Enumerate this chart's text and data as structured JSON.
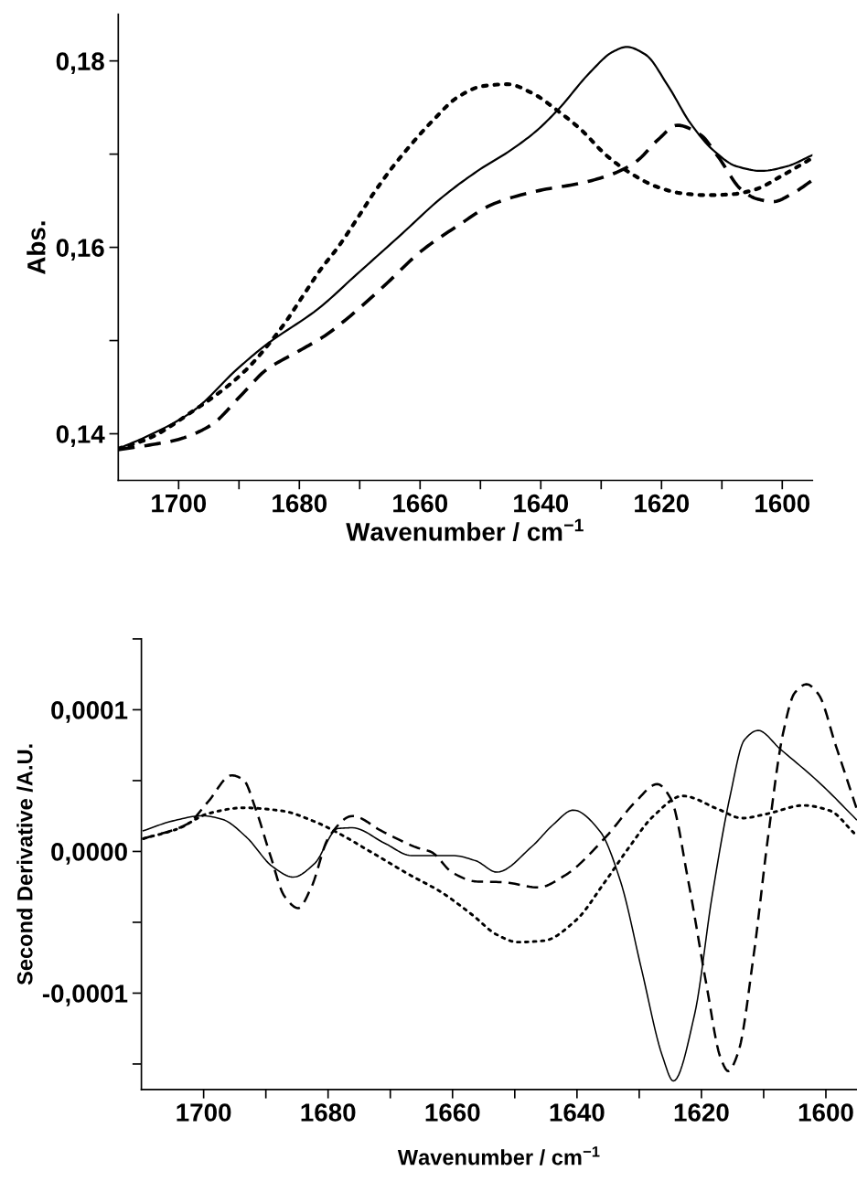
{
  "chart_data": [
    {
      "type": "line",
      "xlabel": "Wavenumber / cm$^{−1}$",
      "ylabel": "Abs.",
      "xlim": [
        1710,
        1595
      ],
      "ylim": [
        0.135,
        0.185
      ],
      "xticks": [
        1700,
        {
          "value": 1690,
          "label": null
        },
        1680,
        {
          "value": 1670,
          "label": null
        },
        1660,
        {
          "value": 1650,
          "label": null
        },
        1640,
        {
          "value": 1630,
          "label": null
        },
        1620,
        {
          "value": 1610,
          "label": null
        },
        1600
      ],
      "yticks": [
        {
          "value": 0.14,
          "label": "0,14"
        },
        {
          "value": 0.15,
          "label": null
        },
        {
          "value": 0.16,
          "label": "0,16"
        },
        {
          "value": 0.17,
          "label": null
        },
        {
          "value": 0.18,
          "label": "0,18"
        }
      ],
      "series": [
        {
          "color": "#000000",
          "line_style": "solid",
          "x": [
            1710,
            1705.3,
            1697.7,
            1690.2,
            1685.6,
            1676.9,
            1670.5,
            1663.6,
            1656.1,
            1650,
            1645.5,
            1640.9,
            1637.1,
            1631.8,
            1628,
            1625.8,
            1622.7,
            1618.9,
            1615.2,
            1611.4,
            1607.6,
            1603.4,
            1599.2,
            1595
          ],
          "values": [
            0.1384,
            0.1397,
            0.1424,
            0.147,
            0.1495,
            0.1534,
            0.1571,
            0.1611,
            0.1655,
            0.1684,
            0.1702,
            0.1724,
            0.1748,
            0.1788,
            0.181,
            0.1815,
            0.1807,
            0.1773,
            0.1733,
            0.1704,
            0.1687,
            0.1682,
            0.1687,
            0.1699
          ]
        },
        {
          "color": "#000000",
          "line_style": "dotted",
          "x": [
            1710,
            1705.3,
            1697.7,
            1689.4,
            1682.6,
            1679.5,
            1676.5,
            1673.5,
            1670.5,
            1667.8,
            1664.8,
            1661.4,
            1657.6,
            1653.8,
            1649.6,
            1645.5,
            1641.3,
            1637.5,
            1633.3,
            1629.2,
            1625,
            1620.8,
            1616.7,
            1612.5,
            1608.3,
            1604.5,
            1600,
            1595.5
          ],
          "values": [
            0.1384,
            0.1394,
            0.1424,
            0.1465,
            0.1517,
            0.1547,
            0.1576,
            0.1601,
            0.163,
            0.1657,
            0.1684,
            0.1711,
            0.1738,
            0.1761,
            0.1773,
            0.1775,
            0.1765,
            0.1748,
            0.1726,
            0.1699,
            0.1679,
            0.1665,
            0.1658,
            0.1656,
            0.1657,
            0.1662,
            0.1677,
            0.1694
          ]
        },
        {
          "color": "#000000",
          "line_style": "dashed",
          "x": [
            1710,
            1703.8,
            1700,
            1694.7,
            1689.4,
            1685.6,
            1680.3,
            1675.8,
            1672,
            1665.9,
            1659.8,
            1653.8,
            1647.7,
            1640.2,
            1633.3,
            1628,
            1624.2,
            1620.5,
            1617.4,
            1613.6,
            1610.6,
            1606.8,
            1604.2,
            1601.5,
            1598.5,
            1595
          ],
          "values": [
            0.1383,
            0.1389,
            0.1394,
            0.1409,
            0.1443,
            0.1468,
            0.1488,
            0.1505,
            0.1524,
            0.1559,
            0.1596,
            0.1623,
            0.1647,
            0.1661,
            0.1669,
            0.1679,
            0.1692,
            0.1716,
            0.1731,
            0.1721,
            0.1697,
            0.1662,
            0.1652,
            0.1649,
            0.1657,
            0.1672
          ]
        }
      ]
    },
    {
      "type": "line",
      "xlabel": "Wavenumber / cm$^{−1}$",
      "ylabel": "Second Derivative /A.U.",
      "xlim": [
        1710,
        1595
      ],
      "ylim": [
        -0.000168,
        0.00015
      ],
      "xticks": [
        1700,
        {
          "value": 1690,
          "label": null
        },
        1680,
        {
          "value": 1670,
          "label": null
        },
        1660,
        {
          "value": 1650,
          "label": null
        },
        1640,
        {
          "value": 1630,
          "label": null
        },
        1620,
        {
          "value": 1610,
          "label": null
        },
        1600
      ],
      "yticks": [
        {
          "value": -0.00015,
          "label": null
        },
        {
          "value": -0.0001,
          "label": "-0,0001"
        },
        {
          "value": -5e-05,
          "label": null
        },
        {
          "value": 0,
          "label": "0,0000"
        },
        {
          "value": 5e-05,
          "label": null
        },
        {
          "value": 0.0001,
          "label": "0,0001"
        },
        {
          "value": 0.00015,
          "label": null
        }
      ],
      "series": [
        {
          "color": "#000000",
          "line_style": "solid",
          "x": [
            1709.7,
            1705,
            1700.2,
            1696.9,
            1693.1,
            1688.9,
            1685.6,
            1682.2,
            1678.4,
            1676.1,
            1670.9,
            1666.6,
            1660,
            1656.2,
            1652.9,
            1647.2,
            1643.8,
            1640.6,
            1636.3,
            1633,
            1629.6,
            1626.3,
            1624.5,
            1621.1,
            1618.3,
            1615.4,
            1613.1,
            1610.9,
            1607.4,
            1600.8,
            1595.1
          ],
          "values": [
            1.46e-05,
            2.15e-05,
            2.52e-05,
            2.25e-05,
            1e-05,
            -1.08e-05,
            -1.81e-05,
            -8.7e-06,
            1.62e-05,
            1.67e-05,
            5.8e-06,
            -2.9e-06,
            -2.9e-06,
            -6.7e-06,
            -1.46e-05,
            3.7e-06,
            1.9e-05,
            2.92e-05,
            1.42e-05,
            -2.12e-05,
            -8.37e-05,
            -0.000144,
            -0.000162,
            -0.000115,
            -3.2e-05,
            3.9e-05,
            7.87e-05,
            8.54e-05,
            7.25e-05,
            4.75e-05,
            2.25e-05
          ]
        },
        {
          "color": "#000000",
          "line_style": "dashed",
          "x": [
            1709.7,
            1702.6,
            1699.3,
            1695.5,
            1693.6,
            1691.7,
            1689.3,
            1687,
            1684.8,
            1682.7,
            1679.9,
            1676.1,
            1671.3,
            1665.7,
            1663.4,
            1660,
            1656.2,
            1651.9,
            1646.2,
            1642,
            1635.4,
            1630.6,
            1627.1,
            1624.9,
            1622.1,
            1619.2,
            1616.9,
            1615.7,
            1614.1,
            1611.6,
            1609.3,
            1606.9,
            1605,
            1603.1,
            1601.2,
            1598.4,
            1595.1
          ],
          "values": [
            9e-06,
            1.94e-05,
            3.5e-05,
            5.37e-05,
            5.06e-05,
            3.08e-05,
            -2.5e-06,
            -3.17e-05,
            -4e-05,
            -2.54e-05,
            1e-05,
            2.5e-05,
            1.42e-05,
            2.7e-06,
            -4e-07,
            -1.5e-05,
            -2.12e-05,
            -2.17e-05,
            -2.54e-05,
            -1.71e-05,
            1e-05,
            3.5e-05,
            4.75e-05,
            3.71e-05,
            -2.12e-05,
            -9.4e-05,
            -0.000146,
            -0.000155,
            -0.000142,
            -7.3e-05,
            1e-05,
            8.3e-05,
            0.000112,
            0.000118,
            0.000111,
            7.46e-05,
            3.08e-05
          ]
        },
        {
          "color": "#000000",
          "line_style": "dotted",
          "x": [
            1709.7,
            1704,
            1699.3,
            1693.6,
            1687.5,
            1681.8,
            1678,
            1672.3,
            1667.1,
            1661.9,
            1656.7,
            1652.9,
            1649.5,
            1645.3,
            1640.1,
            1635.8,
            1631.5,
            1627.8,
            1623,
            1617.3,
            1613.5,
            1609.3,
            1603.6,
            1599.3,
            1595.5
          ],
          "values": [
            9e-06,
            1.62e-05,
            2.67e-05,
            3.08e-05,
            2.87e-05,
            2.04e-05,
            1.21e-05,
            -2.5e-06,
            -1.6e-05,
            -2.85e-05,
            -4.52e-05,
            -5.87e-05,
            -6.4e-05,
            -6.3e-05,
            -4.83e-05,
            -2.33e-05,
            3.7e-06,
            2.46e-05,
            3.92e-05,
            2.98e-05,
            2.35e-05,
            2.67e-05,
            3.25e-05,
            2.87e-05,
            1.31e-05
          ]
        }
      ]
    }
  ]
}
